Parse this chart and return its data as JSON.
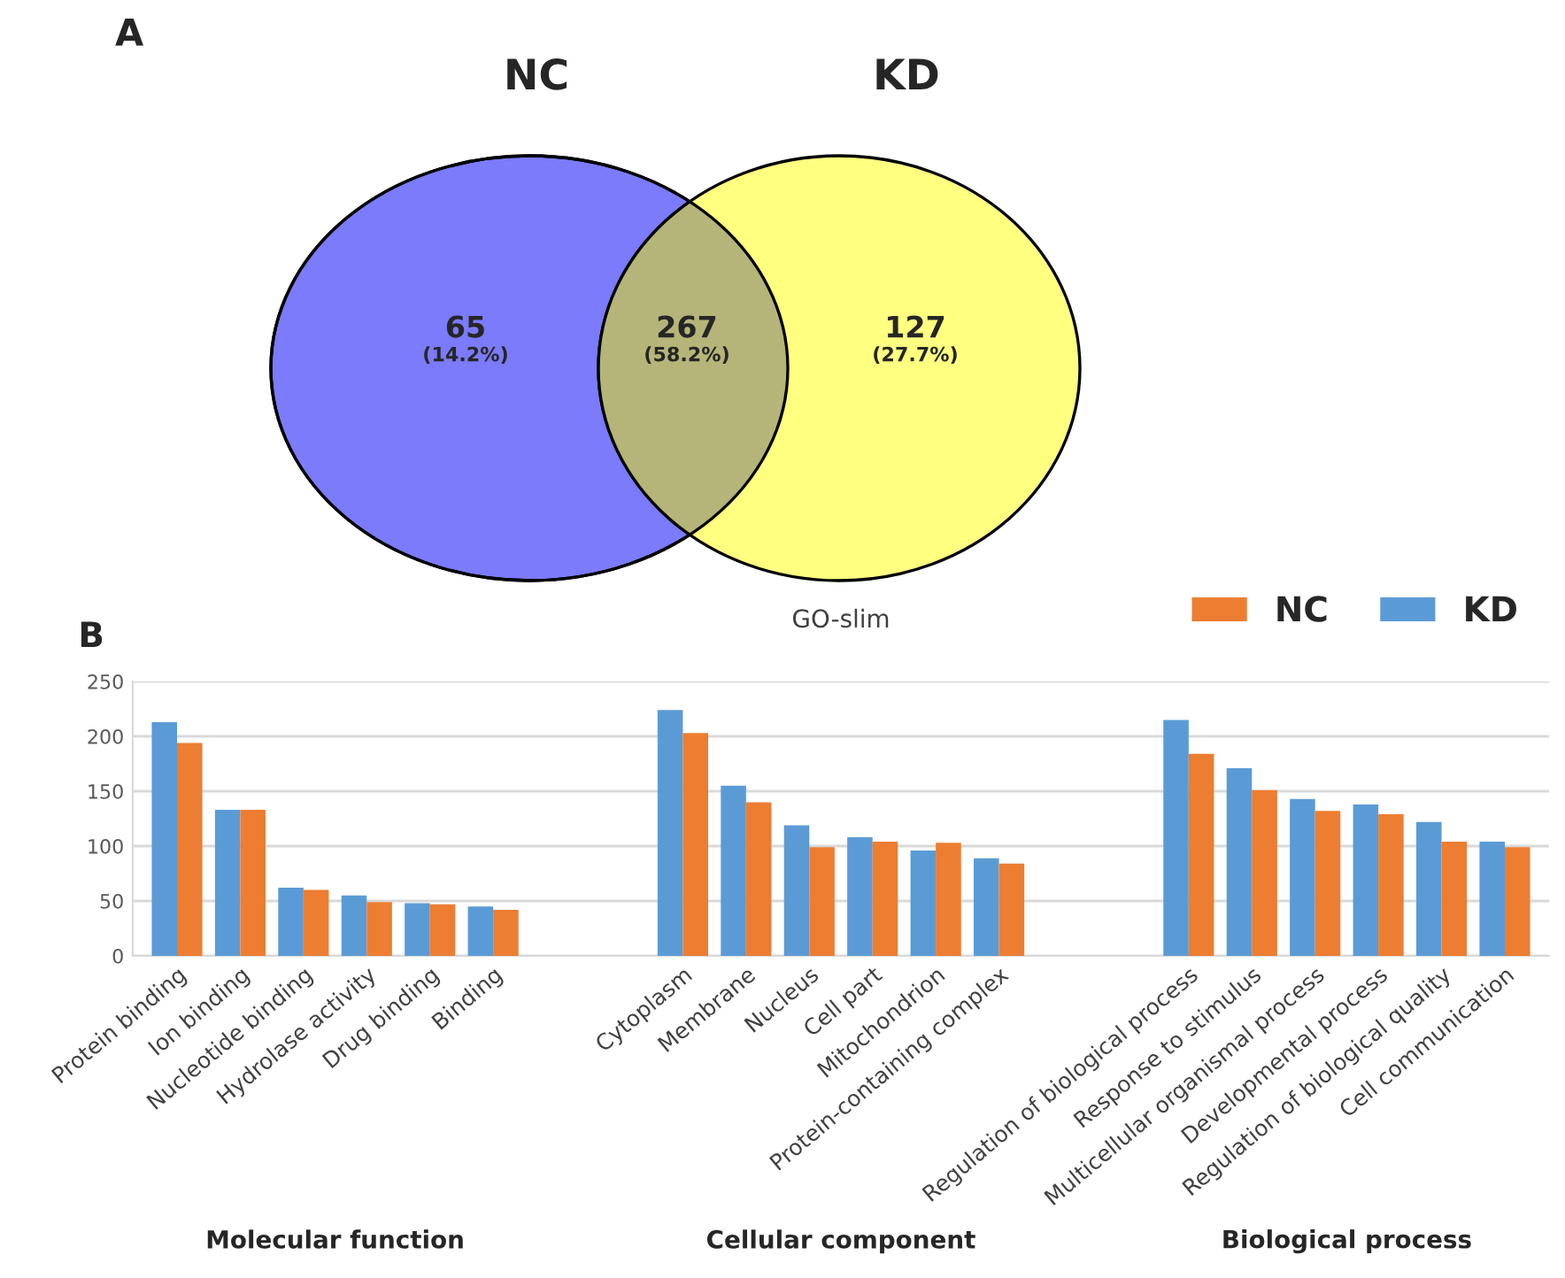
{
  "chart_data": [
    {
      "type": "other",
      "annotations": [
        "A",
        "NC",
        "KD",
        "(14.2%)",
        "(58.2%)",
        "(27.7%)"
      ],
      "categories": [
        null,
        null,
        null
      ],
      "values": [
        65,
        267,
        127
      ],
      "colors": [
        "#7b7bfb",
        "#b5b57a",
        "#ffff80"
      ],
      "data_labels": true
    },
    {
      "type": "bar",
      "title": "GO-slim",
      "annotations": [
        "B",
        "Molecular function",
        "Cellular component",
        "Biological process"
      ],
      "categories": [
        "Protein binding",
        "Ion binding",
        "Nucleotide binding",
        "Hydrolase activity",
        "Drug binding",
        "Binding",
        null,
        null,
        "Cytoplasm",
        "Membrane",
        "Nucleus",
        "Cell part",
        "Mitochondrion",
        "Protein-containing complex",
        null,
        null,
        "Regulation of biological process",
        "Response to stimulus",
        "Multicellular organismal process",
        "Developmental process",
        "Regulation of biological quality",
        "Cell communication"
      ],
      "series": [
        {
          "name": "KD",
          "color": "#5b9bd5",
          "values": [
            213,
            133,
            62,
            55,
            48,
            45,
            null,
            null,
            224,
            155,
            119,
            108,
            96,
            89,
            null,
            null,
            215,
            171,
            143,
            138,
            122,
            104
          ]
        },
        {
          "name": "NC",
          "color": "#ed7d31",
          "values": [
            194,
            133,
            60,
            49,
            47,
            42,
            null,
            null,
            203,
            140,
            99,
            104,
            103,
            84,
            null,
            null,
            184,
            151,
            132,
            129,
            104,
            99
          ]
        }
      ],
      "ylim": [
        0,
        250
      ],
      "yticks": [
        0,
        50,
        100,
        150,
        200,
        250
      ],
      "grid": "y",
      "legend": "top right"
    }
  ]
}
